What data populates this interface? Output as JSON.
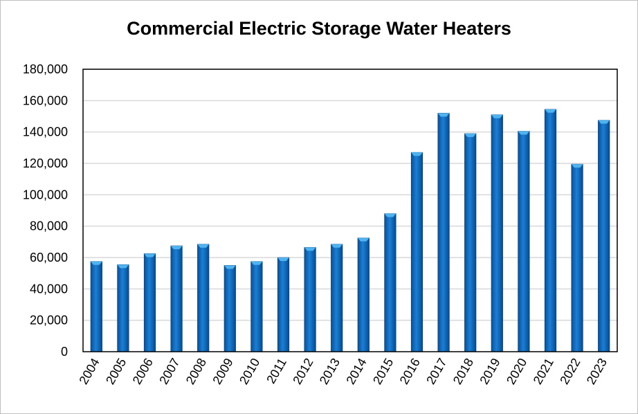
{
  "chart_data": {
    "type": "bar",
    "title": "Commercial Electric Storage Water Heaters",
    "xlabel": "",
    "ylabel": "",
    "categories": [
      "2004",
      "2005",
      "2006",
      "2007",
      "2008",
      "2009",
      "2010",
      "2011",
      "2012",
      "2013",
      "2014",
      "2015",
      "2016",
      "2017",
      "2018",
      "2019",
      "2020",
      "2021",
      "2022",
      "2023"
    ],
    "values": [
      57500,
      55500,
      62500,
      67500,
      68500,
      55000,
      57500,
      60000,
      66500,
      68500,
      72500,
      88000,
      127000,
      152000,
      139000,
      151000,
      140500,
      154500,
      119500,
      147500
    ],
    "ylim": [
      0,
      180000
    ],
    "yticks": [
      "0",
      "20,000",
      "40,000",
      "60,000",
      "80,000",
      "100,000",
      "120,000",
      "140,000",
      "160,000",
      "180,000"
    ],
    "grid": true,
    "legend": "none",
    "colors": {
      "bar": "#0b63b8",
      "bar_top": "#4fb3f0",
      "grid": "#d9d9d9",
      "axis": "#000000"
    }
  }
}
